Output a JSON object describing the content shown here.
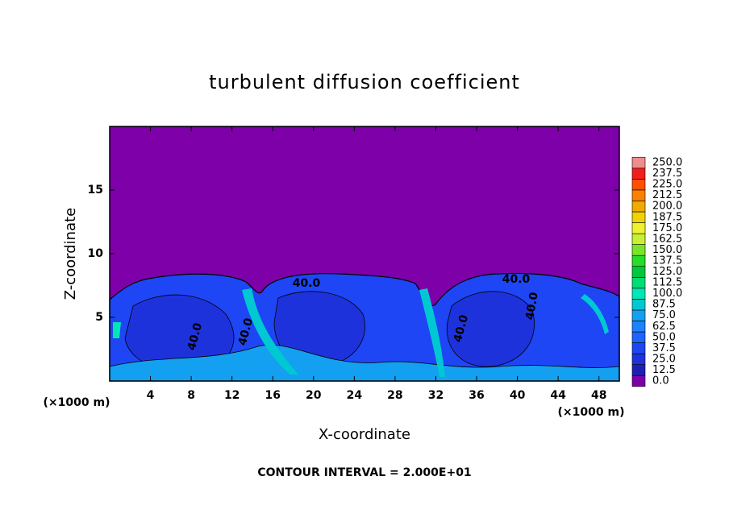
{
  "chart_data": {
    "type": "contour",
    "title": "turbulent diffusion coefficient",
    "xlabel": "X-coordinate",
    "ylabel": "Z-coordinate",
    "y_unit": "(×1000 m)",
    "x_unit": "(×1000 m)",
    "footer": "CONTOUR INTERVAL = 2.000E+01",
    "xlim": [
      0,
      50
    ],
    "xticks": [
      4,
      8,
      12,
      16,
      20,
      24,
      28,
      32,
      36,
      40,
      44,
      48
    ],
    "ylim": [
      0,
      20
    ],
    "yticks": [
      5,
      10,
      15
    ],
    "contour_labels": [
      "40.0",
      "40.0",
      "40.0",
      "40.0",
      "40.0",
      "40.0"
    ],
    "levels": [
      {
        "value": 0,
        "label": "0.0"
      },
      {
        "value": 12.5,
        "label": "12.5"
      },
      {
        "value": 25,
        "label": "25.0"
      },
      {
        "value": 37.5,
        "label": "37.5"
      },
      {
        "value": 50,
        "label": "50.0"
      },
      {
        "value": 62.5,
        "label": "62.5"
      },
      {
        "value": 75,
        "label": "75.0"
      },
      {
        "value": 87.5,
        "label": "87.5"
      },
      {
        "value": 100,
        "label": "100.0"
      },
      {
        "value": 112.5,
        "label": "112.5"
      },
      {
        "value": 125,
        "label": "125.0"
      },
      {
        "value": 137.5,
        "label": "137.5"
      },
      {
        "value": 150,
        "label": "150.0"
      },
      {
        "value": 162.5,
        "label": "162.5"
      },
      {
        "value": 175,
        "label": "175.0"
      },
      {
        "value": 187.5,
        "label": "187.5"
      },
      {
        "value": 200,
        "label": "200.0"
      },
      {
        "value": 212.5,
        "label": "212.5"
      },
      {
        "value": 225,
        "label": "225.0"
      },
      {
        "value": 237.5,
        "label": "237.5"
      },
      {
        "value": 250,
        "label": "250.0"
      }
    ],
    "colors": [
      "#7d00a8",
      "#1e1eb4",
      "#1e32dc",
      "#1e46f5",
      "#1e64ff",
      "#1e82ff",
      "#14a0f0",
      "#00c8d2",
      "#00e6b4",
      "#00dc78",
      "#00c83c",
      "#28dc28",
      "#78e628",
      "#c8f032",
      "#f0f032",
      "#f0d200",
      "#f0aa00",
      "#fa8200",
      "#ff5000",
      "#f01e1e",
      "#f08c8c"
    ]
  }
}
